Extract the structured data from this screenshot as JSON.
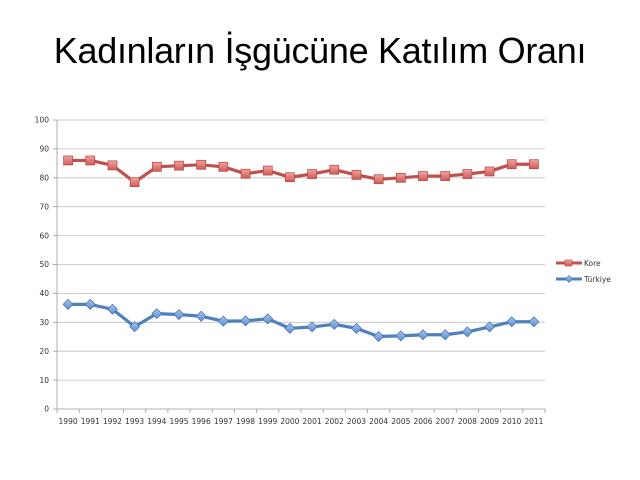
{
  "slide": {
    "title": "Kadınların İşgücüne Katılım Oranı"
  },
  "chart_data": {
    "type": "line",
    "title": "Kadınların İşgücüne Katılım Oranı",
    "xlabel": "",
    "ylabel": "",
    "ylim": [
      0,
      100
    ],
    "yticks": [
      0,
      10,
      20,
      30,
      40,
      50,
      60,
      70,
      80,
      90,
      100
    ],
    "grid": true,
    "legend_position": "right",
    "categories": [
      "1990",
      "1991",
      "1992",
      "1993",
      "1994",
      "1995",
      "1996",
      "1997",
      "1998",
      "1999",
      "2000",
      "2001",
      "2002",
      "2003",
      "2004",
      "2005",
      "2006",
      "2007",
      "2008",
      "2009",
      "2010",
      "2011"
    ],
    "series": [
      {
        "name": "Kore",
        "color": "#c0504d",
        "marker": "square",
        "values": [
          86.0,
          86.0,
          84.3,
          78.5,
          83.8,
          84.2,
          84.5,
          83.8,
          81.4,
          82.5,
          80.2,
          81.3,
          82.8,
          81.0,
          79.5,
          80.0,
          80.6,
          80.6,
          81.3,
          82.2,
          84.7,
          84.7
        ]
      },
      {
        "name": "Türkiye",
        "color": "#4f81bd",
        "marker": "diamond",
        "values": [
          36.2,
          36.2,
          34.5,
          28.5,
          33.0,
          32.7,
          32.1,
          30.4,
          30.5,
          31.2,
          27.9,
          28.4,
          29.3,
          27.9,
          25.1,
          25.3,
          25.7,
          25.7,
          26.7,
          28.4,
          30.2,
          30.2
        ]
      }
    ]
  }
}
